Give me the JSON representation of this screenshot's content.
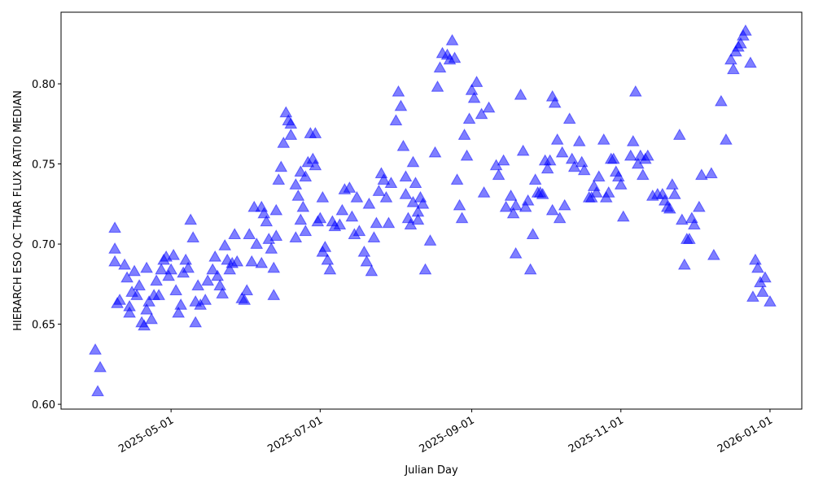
{
  "chart_data": {
    "type": "scatter",
    "marker": "triangle",
    "color": "#0000ff",
    "opacity": 0.5,
    "xlabel": "Julian Day",
    "ylabel": "HIERARCH ESO QC THAR FLUX RATIO MEDIAN",
    "xlim": [
      "2025-03-17",
      "2026-01-14"
    ],
    "xticks": [
      "2025-05-01",
      "2025-07-01",
      "2025-09-01",
      "2025-11-01",
      "2026-01-01"
    ],
    "ylim": [
      0.597,
      0.8447
    ],
    "yticks": [
      {
        "value": 0.6,
        "label": "0.60"
      },
      {
        "value": 0.65,
        "label": "0.65"
      },
      {
        "value": 0.7,
        "label": "0.70"
      },
      {
        "value": 0.75,
        "label": "0.75"
      },
      {
        "value": 0.8,
        "label": "0.80"
      }
    ],
    "x": [
      "2025-03-31",
      "2025-04-01",
      "2025-04-02",
      "2025-04-08",
      "2025-04-08",
      "2025-04-08",
      "2025-04-09",
      "2025-04-10",
      "2025-04-12",
      "2025-04-13",
      "2025-04-14",
      "2025-04-14",
      "2025-04-15",
      "2025-04-16",
      "2025-04-17",
      "2025-04-18",
      "2025-04-19",
      "2025-04-20",
      "2025-04-21",
      "2025-04-21",
      "2025-04-22",
      "2025-04-23",
      "2025-04-24",
      "2025-04-25",
      "2025-04-26",
      "2025-04-27",
      "2025-04-28",
      "2025-04-29",
      "2025-04-30",
      "2025-05-01",
      "2025-05-02",
      "2025-05-03",
      "2025-05-04",
      "2025-05-05",
      "2025-05-06",
      "2025-05-07",
      "2025-05-08",
      "2025-05-09",
      "2025-05-10",
      "2025-05-11",
      "2025-05-11",
      "2025-05-12",
      "2025-05-13",
      "2025-05-15",
      "2025-05-16",
      "2025-05-18",
      "2025-05-19",
      "2025-05-20",
      "2025-05-21",
      "2025-05-22",
      "2025-05-23",
      "2025-05-24",
      "2025-05-25",
      "2025-05-26",
      "2025-05-27",
      "2025-05-28",
      "2025-05-30",
      "2025-05-31",
      "2025-06-01",
      "2025-06-02",
      "2025-06-03",
      "2025-06-04",
      "2025-06-05",
      "2025-06-07",
      "2025-06-07",
      "2025-06-08",
      "2025-06-09",
      "2025-06-10",
      "2025-06-11",
      "2025-06-12",
      "2025-06-12",
      "2025-06-13",
      "2025-06-13",
      "2025-06-14",
      "2025-06-15",
      "2025-06-16",
      "2025-06-17",
      "2025-06-18",
      "2025-06-19",
      "2025-06-19",
      "2025-06-21",
      "2025-06-21",
      "2025-06-22",
      "2025-06-23",
      "2025-06-23",
      "2025-06-24",
      "2025-06-25",
      "2025-06-25",
      "2025-06-26",
      "2025-06-27",
      "2025-06-28",
      "2025-06-29",
      "2025-06-29",
      "2025-06-30",
      "2025-07-01",
      "2025-07-02",
      "2025-07-02",
      "2025-07-03",
      "2025-07-04",
      "2025-07-05",
      "2025-07-06",
      "2025-07-07",
      "2025-07-09",
      "2025-07-10",
      "2025-07-11",
      "2025-07-13",
      "2025-07-14",
      "2025-07-15",
      "2025-07-16",
      "2025-07-17",
      "2025-07-19",
      "2025-07-20",
      "2025-07-21",
      "2025-07-22",
      "2025-07-23",
      "2025-07-24",
      "2025-07-25",
      "2025-07-26",
      "2025-07-27",
      "2025-07-28",
      "2025-07-29",
      "2025-07-30",
      "2025-08-01",
      "2025-08-02",
      "2025-08-03",
      "2025-08-04",
      "2025-08-05",
      "2025-08-05",
      "2025-08-06",
      "2025-08-07",
      "2025-08-08",
      "2025-08-08",
      "2025-08-09",
      "2025-08-10",
      "2025-08-10",
      "2025-08-11",
      "2025-08-12",
      "2025-08-13",
      "2025-08-15",
      "2025-08-17",
      "2025-08-18",
      "2025-08-19",
      "2025-08-20",
      "2025-08-22",
      "2025-08-23",
      "2025-08-24",
      "2025-08-25",
      "2025-08-26",
      "2025-08-27",
      "2025-08-28",
      "2025-08-29",
      "2025-08-30",
      "2025-08-31",
      "2025-09-01",
      "2025-09-02",
      "2025-09-03",
      "2025-09-05",
      "2025-09-06",
      "2025-09-08",
      "2025-09-11",
      "2025-09-12",
      "2025-09-14",
      "2025-09-15",
      "2025-09-17",
      "2025-09-18",
      "2025-09-19",
      "2025-09-19",
      "2025-09-21",
      "2025-09-22",
      "2025-09-23",
      "2025-09-24",
      "2025-09-25",
      "2025-09-26",
      "2025-09-27",
      "2025-09-28",
      "2025-09-29",
      "2025-09-30",
      "2025-10-01",
      "2025-10-02",
      "2025-10-03",
      "2025-10-04",
      "2025-10-04",
      "2025-10-05",
      "2025-10-06",
      "2025-10-07",
      "2025-10-08",
      "2025-10-09",
      "2025-10-11",
      "2025-10-12",
      "2025-10-13",
      "2025-10-15",
      "2025-10-16",
      "2025-10-17",
      "2025-10-19",
      "2025-10-20",
      "2025-10-21",
      "2025-10-22",
      "2025-10-23",
      "2025-10-25",
      "2025-10-26",
      "2025-10-27",
      "2025-10-28",
      "2025-10-29",
      "2025-10-30",
      "2025-10-31",
      "2025-11-01",
      "2025-11-02",
      "2025-11-05",
      "2025-11-06",
      "2025-11-07",
      "2025-11-08",
      "2025-11-09",
      "2025-11-10",
      "2025-11-11",
      "2025-11-12",
      "2025-11-14",
      "2025-11-16",
      "2025-11-18",
      "2025-11-19",
      "2025-11-20",
      "2025-11-21",
      "2025-11-22",
      "2025-11-23",
      "2025-11-25",
      "2025-11-26",
      "2025-11-27",
      "2025-11-28",
      "2025-11-29",
      "2025-11-30",
      "2025-12-01",
      "2025-12-03",
      "2025-12-04",
      "2025-12-08",
      "2025-12-09",
      "2025-12-12",
      "2025-12-14",
      "2025-12-16",
      "2025-12-17",
      "2025-12-18",
      "2025-12-19",
      "2025-12-20",
      "2025-12-21",
      "2025-12-22",
      "2025-12-24",
      "2025-12-25",
      "2025-12-26",
      "2025-12-27",
      "2025-12-28",
      "2025-12-29",
      "2025-12-30",
      "2026-01-01"
    ],
    "values": [
      0.634,
      0.608,
      0.623,
      0.71,
      0.697,
      0.689,
      0.663,
      0.665,
      0.687,
      0.679,
      0.661,
      0.657,
      0.67,
      0.683,
      0.668,
      0.674,
      0.651,
      0.649,
      0.685,
      0.659,
      0.664,
      0.653,
      0.668,
      0.677,
      0.668,
      0.684,
      0.69,
      0.692,
      0.68,
      0.684,
      0.693,
      0.671,
      0.657,
      0.662,
      0.682,
      0.69,
      0.685,
      0.715,
      0.704,
      0.664,
      0.651,
      0.674,
      0.662,
      0.665,
      0.677,
      0.684,
      0.692,
      0.68,
      0.674,
      0.669,
      0.699,
      0.69,
      0.684,
      0.688,
      0.706,
      0.689,
      0.666,
      0.665,
      0.671,
      0.706,
      0.689,
      0.723,
      0.7,
      0.688,
      0.723,
      0.719,
      0.714,
      0.703,
      0.697,
      0.685,
      0.668,
      0.721,
      0.705,
      0.74,
      0.748,
      0.763,
      0.782,
      0.777,
      0.768,
      0.775,
      0.704,
      0.737,
      0.73,
      0.715,
      0.745,
      0.723,
      0.708,
      0.742,
      0.751,
      0.769,
      0.753,
      0.749,
      0.769,
      0.714,
      0.716,
      0.729,
      0.695,
      0.698,
      0.69,
      0.684,
      0.714,
      0.711,
      0.712,
      0.721,
      0.734,
      0.735,
      0.717,
      0.706,
      0.729,
      0.708,
      0.695,
      0.689,
      0.725,
      0.683,
      0.704,
      0.713,
      0.733,
      0.744,
      0.74,
      0.729,
      0.713,
      0.738,
      0.777,
      0.795,
      0.786,
      0.761,
      0.742,
      0.731,
      0.716,
      0.712,
      0.751,
      0.726,
      0.738,
      0.72,
      0.715,
      0.729,
      0.725,
      0.684,
      0.702,
      0.757,
      0.798,
      0.81,
      0.819,
      0.818,
      0.815,
      0.827,
      0.816,
      0.74,
      0.724,
      0.716,
      0.768,
      0.755,
      0.778,
      0.796,
      0.791,
      0.801,
      0.781,
      0.732,
      0.785,
      0.749,
      0.743,
      0.752,
      0.723,
      0.73,
      0.719,
      0.724,
      0.694,
      0.793,
      0.758,
      0.723,
      0.727,
      0.684,
      0.706,
      0.74,
      0.732,
      0.732,
      0.731,
      0.752,
      0.747,
      0.752,
      0.721,
      0.792,
      0.788,
      0.765,
      0.716,
      0.757,
      0.724,
      0.778,
      0.753,
      0.748,
      0.764,
      0.751,
      0.746,
      0.729,
      0.729,
      0.736,
      0.732,
      0.742,
      0.765,
      0.729,
      0.732,
      0.753,
      0.753,
      0.745,
      0.742,
      0.737,
      0.717,
      0.755,
      0.764,
      0.795,
      0.75,
      0.755,
      0.743,
      0.753,
      0.755,
      0.73,
      0.731,
      0.731,
      0.727,
      0.723,
      0.722,
      0.737,
      0.731,
      0.768,
      0.715,
      0.687,
      0.703,
      0.703,
      0.716,
      0.712,
      0.723,
      0.743,
      0.744,
      0.693,
      0.789,
      0.765,
      0.815,
      0.809,
      0.82,
      0.823,
      0.825,
      0.83,
      0.833,
      0.813,
      0.667,
      0.69,
      0.685,
      0.676,
      0.67,
      0.679,
      0.664
    ]
  }
}
